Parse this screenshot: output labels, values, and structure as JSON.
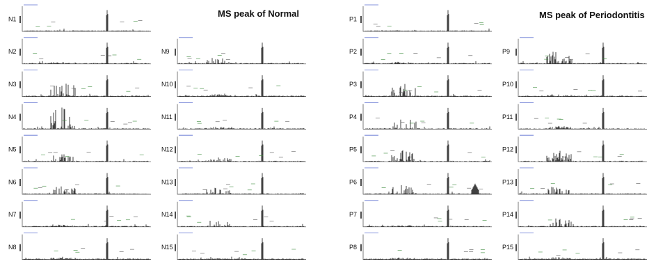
{
  "groups": [
    {
      "title": "MS peak of Normal",
      "panels": [
        "N1",
        "N2",
        "N3",
        "N4",
        "N5",
        "N6",
        "N7",
        "N8",
        "N9",
        "N10",
        "N11",
        "N12",
        "N13",
        "N14",
        "N15"
      ]
    },
    {
      "title": "MS peak of Periodontitis",
      "panels": [
        "P1",
        "P2",
        "P3",
        "P4",
        "P5",
        "P6",
        "P7",
        "P8",
        "P9",
        "P10",
        "P11",
        "P12",
        "P13",
        "P14",
        "P15"
      ]
    }
  ]
}
